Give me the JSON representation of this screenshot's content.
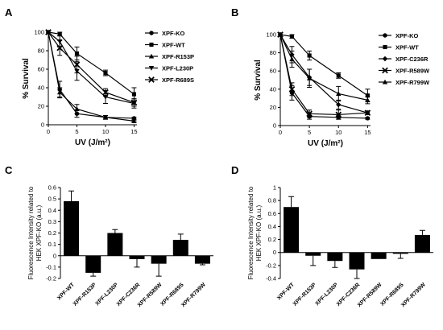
{
  "chart_data": [
    {
      "panel": "A",
      "type": "line",
      "xlabel": "UV (J/m²)",
      "ylabel": "% Survival",
      "xlim": [
        0,
        15.5
      ],
      "ylim": [
        0,
        100
      ],
      "xticks": [
        0,
        5,
        10,
        15
      ],
      "yticks": [
        0,
        20,
        40,
        60,
        80,
        100
      ],
      "x": [
        0,
        2,
        5,
        10,
        15
      ],
      "legend": "right",
      "series": [
        {
          "name": "XPF-KO",
          "marker": "circle",
          "values": [
            100,
            38,
            12,
            8,
            7
          ],
          "errors": [
            0,
            9,
            4,
            2,
            1
          ]
        },
        {
          "name": "XPF-WT",
          "marker": "square",
          "values": [
            100,
            98,
            77,
            56,
            33
          ],
          "errors": [
            0,
            2,
            7,
            3,
            7
          ]
        },
        {
          "name": "XPF-R153P",
          "marker": "triangle",
          "values": [
            100,
            35,
            17,
            8,
            4
          ],
          "errors": [
            0,
            5,
            5,
            2,
            1
          ]
        },
        {
          "name": "XPF-L230P",
          "marker": "triangle-down",
          "values": [
            100,
            90,
            58,
            30,
            23
          ],
          "errors": [
            0,
            6,
            10,
            7,
            5
          ]
        },
        {
          "name": "XPF-R689S",
          "marker": "x",
          "values": [
            100,
            83,
            65,
            35,
            24
          ],
          "errors": [
            0,
            8,
            9,
            4,
            4
          ]
        }
      ]
    },
    {
      "panel": "B",
      "type": "line",
      "xlabel": "UV (J/m²)",
      "ylabel": "% Survival",
      "xlim": [
        0,
        15.5
      ],
      "ylim": [
        0,
        100
      ],
      "xticks": [
        0,
        5,
        10,
        15
      ],
      "yticks": [
        0,
        20,
        40,
        60,
        80,
        100
      ],
      "x": [
        0,
        2,
        5,
        10,
        15
      ],
      "legend": "right",
      "series": [
        {
          "name": "XPF-KO",
          "marker": "circle",
          "values": [
            100,
            36,
            10,
            9,
            8
          ],
          "errors": [
            0,
            8,
            3,
            2,
            1
          ]
        },
        {
          "name": "XPF-WT",
          "marker": "square",
          "values": [
            100,
            98,
            77,
            55,
            33
          ],
          "errors": [
            0,
            2,
            5,
            3,
            7
          ]
        },
        {
          "name": "XPF-C236R",
          "marker": "diamond",
          "values": [
            100,
            78,
            53,
            23,
            14
          ],
          "errors": [
            0,
            9,
            9,
            5,
            2
          ]
        },
        {
          "name": "XPF-R589W",
          "marker": "x",
          "values": [
            100,
            40,
            13,
            12,
            14
          ],
          "errors": [
            0,
            7,
            4,
            5,
            2
          ]
        },
        {
          "name": "XPF-R799W",
          "marker": "triangle",
          "values": [
            100,
            73,
            52,
            35,
            28
          ],
          "errors": [
            0,
            9,
            10,
            8,
            4
          ]
        }
      ]
    },
    {
      "panel": "C",
      "type": "bar",
      "ylabel_lines": [
        "Fluorescence Intensity related to",
        "HEK XPF-KO (a.u.)"
      ],
      "ylim": [
        -0.2,
        0.6
      ],
      "yticks": [
        -0.2,
        -0.1,
        0,
        0.1,
        0.2,
        0.3,
        0.4,
        0.5,
        0.6
      ],
      "ytick_labels": [
        "-0.2",
        "-0.1",
        "0",
        "0.1",
        "0.2",
        "0.3",
        "0.4",
        "0.5",
        "0.6"
      ],
      "categories": [
        "XPF-WT",
        "XPF-R153P",
        "XPF-L230P",
        "XPF-C236R",
        "XPF-R589W",
        "XPF-R689S",
        "XPF-R799W"
      ],
      "values": [
        0.48,
        -0.15,
        0.2,
        -0.03,
        -0.07,
        0.14,
        -0.07
      ],
      "errors": [
        0.09,
        0.03,
        0.03,
        0.07,
        0.11,
        0.05,
        0.01
      ]
    },
    {
      "panel": "D",
      "type": "bar",
      "ylabel_lines": [
        "Fluorescence Intensity related to",
        "HEK XPF-KO (a.u.)"
      ],
      "ylim": [
        -0.4,
        1.0
      ],
      "yticks": [
        -0.4,
        -0.2,
        0,
        0.2,
        0.4,
        0.6,
        0.8,
        1
      ],
      "ytick_labels": [
        "-0.4",
        "-0.2",
        "0",
        "0.2",
        "0.4",
        "0.6",
        "0.8",
        "1"
      ],
      "categories": [
        "XPF-WT",
        "XPF-R153P",
        "XPF-L230P",
        "XPF-C236R",
        "XPF-R589W",
        "XPF-R689S",
        "XPF-R799W"
      ],
      "values": [
        0.7,
        -0.05,
        -0.13,
        -0.26,
        -0.1,
        -0.02,
        0.27
      ],
      "errors": [
        0.16,
        0.15,
        0.1,
        0.14,
        0.0,
        0.07,
        0.07
      ]
    }
  ]
}
